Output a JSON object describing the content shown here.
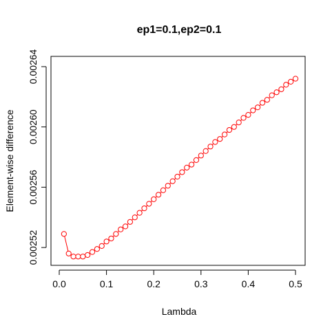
{
  "chart_data": {
    "type": "line",
    "title": "ep1=0.1,ep2=0.1",
    "xlabel": "Lambda",
    "ylabel": "Element-wise difference",
    "xlim": [
      0.0,
      0.5
    ],
    "ylim": [
      0.00251,
      0.002645
    ],
    "xticks": [
      0.0,
      0.1,
      0.2,
      0.3,
      0.4,
      0.5
    ],
    "xtick_labels": [
      "0.0",
      "0.1",
      "0.2",
      "0.3",
      "0.4",
      "0.5"
    ],
    "yticks": [
      0.00252,
      0.00256,
      0.0026,
      0.00264
    ],
    "ytick_labels": [
      "0.00252",
      "0.00256",
      "0.00260",
      "0.00264"
    ],
    "grid": false,
    "series_color": "#ff0000",
    "marker": "open-circle",
    "x": [
      0.01,
      0.02,
      0.03,
      0.04,
      0.05,
      0.06,
      0.07,
      0.08,
      0.09,
      0.1,
      0.11,
      0.12,
      0.13,
      0.14,
      0.15,
      0.16,
      0.17,
      0.18,
      0.19,
      0.2,
      0.21,
      0.22,
      0.23,
      0.24,
      0.25,
      0.26,
      0.27,
      0.28,
      0.29,
      0.3,
      0.31,
      0.32,
      0.33,
      0.34,
      0.35,
      0.36,
      0.37,
      0.38,
      0.39,
      0.4,
      0.41,
      0.42,
      0.43,
      0.44,
      0.45,
      0.46,
      0.47,
      0.48,
      0.49,
      0.5
    ],
    "y": [
      0.002529,
      0.002516,
      0.002514,
      0.002514,
      0.002514,
      0.002515,
      0.002517,
      0.002519,
      0.002521,
      0.002524,
      0.002526,
      0.002529,
      0.002532,
      0.002534,
      0.002537,
      0.00254,
      0.002543,
      0.002546,
      0.002549,
      0.002552,
      0.002555,
      0.002558,
      0.002561,
      0.002564,
      0.002567,
      0.00257,
      0.002573,
      0.002575,
      0.002578,
      0.002581,
      0.002584,
      0.002587,
      0.00259,
      0.002592,
      0.002595,
      0.002598,
      0.0026,
      0.002603,
      0.002606,
      0.002608,
      0.002611,
      0.002613,
      0.002616,
      0.002618,
      0.002621,
      0.002623,
      0.002625,
      0.002628,
      0.00263,
      0.002632
    ]
  }
}
